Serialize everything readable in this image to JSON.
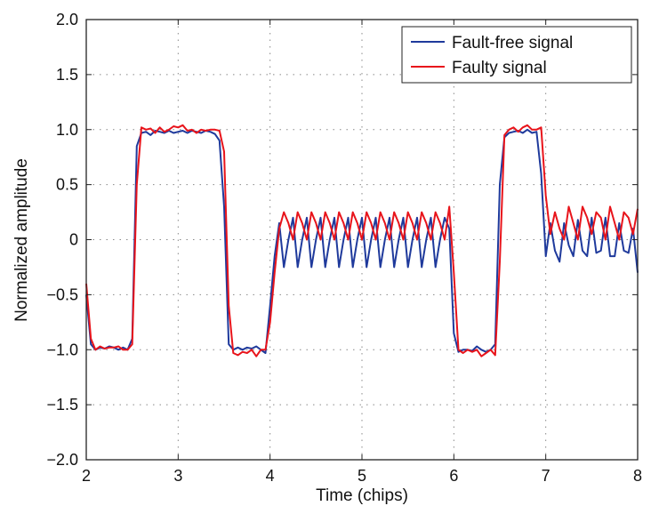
{
  "chart_data": {
    "type": "line",
    "title": "",
    "xlabel": "Time (chips)",
    "ylabel": "Normalized amplitude",
    "xlim": [
      2,
      8
    ],
    "ylim": [
      -2,
      2
    ],
    "xticks": [
      2,
      3,
      4,
      5,
      6,
      7,
      8
    ],
    "xtick_labels": [
      "2",
      "3",
      "4",
      "5",
      "6",
      "7",
      "8"
    ],
    "yticks": [
      -2,
      -1.5,
      -1,
      -0.5,
      0,
      0.5,
      1,
      1.5,
      2
    ],
    "ytick_labels": [
      "−2.0",
      "−1.5",
      "−1.0",
      "−0.5",
      "0",
      "0.5",
      "1.0",
      "1.5",
      "2.0"
    ],
    "grid": true,
    "legend_position": "top-right",
    "x_start": 2,
    "x_step": 0.05,
    "series": [
      {
        "name": "Fault-free signal",
        "color": "#1f3a9c",
        "values": [
          -0.5,
          -0.95,
          -1.0,
          -0.98,
          -0.99,
          -0.97,
          -0.98,
          -1.0,
          -0.98,
          -1.0,
          -0.9,
          0.85,
          0.97,
          0.98,
          0.95,
          0.99,
          0.98,
          0.97,
          0.99,
          0.97,
          0.98,
          0.99,
          0.97,
          0.99,
          0.98,
          0.97,
          0.99,
          0.98,
          0.96,
          0.9,
          0.3,
          -0.95,
          -1.0,
          -0.98,
          -1.0,
          -0.98,
          -0.99,
          -0.97,
          -1.0,
          -1.03,
          -0.6,
          -0.15,
          0.15,
          -0.25,
          0.0,
          0.2,
          -0.25,
          0.0,
          0.2,
          -0.25,
          0.0,
          0.2,
          -0.25,
          0.0,
          0.2,
          -0.25,
          0.0,
          0.2,
          -0.25,
          0.0,
          0.2,
          -0.25,
          0.0,
          0.2,
          -0.25,
          0.0,
          0.2,
          -0.25,
          0.0,
          0.2,
          -0.25,
          0.0,
          0.2,
          -0.25,
          0.0,
          0.2,
          -0.25,
          0.0,
          0.2,
          0.1,
          -0.85,
          -1.02,
          -1.0,
          -1.0,
          -1.01,
          -0.97,
          -1.0,
          -1.02,
          -1.0,
          -0.95,
          0.5,
          0.93,
          0.97,
          0.98,
          0.99,
          0.97,
          1.0,
          0.97,
          0.98,
          0.6,
          -0.15,
          0.15,
          -0.1,
          -0.2,
          0.15,
          -0.05,
          -0.15,
          0.18,
          -0.1,
          -0.15,
          0.2,
          -0.12,
          -0.1,
          0.2,
          -0.15,
          -0.15,
          0.15,
          -0.1,
          -0.12,
          0.1,
          -0.3
        ]
      },
      {
        "name": "Faulty signal",
        "color": "#e8141b",
        "values": [
          -0.4,
          -0.9,
          -1.0,
          -0.97,
          -0.99,
          -0.98,
          -0.98,
          -0.97,
          -1.0,
          -1.0,
          -0.95,
          0.5,
          1.02,
          1.0,
          1.01,
          0.97,
          1.02,
          0.98,
          1.0,
          1.03,
          1.02,
          1.04,
          0.99,
          1.0,
          0.97,
          1.0,
          0.99,
          1.0,
          1.0,
          0.99,
          0.8,
          -0.6,
          -1.03,
          -1.05,
          -1.02,
          -1.03,
          -1.0,
          -1.06,
          -1.0,
          -1.0,
          -0.75,
          -0.3,
          0.1,
          0.25,
          0.15,
          0.0,
          0.25,
          0.15,
          0.0,
          0.25,
          0.15,
          0.0,
          0.25,
          0.15,
          0.0,
          0.25,
          0.15,
          0.0,
          0.25,
          0.15,
          0.0,
          0.25,
          0.15,
          0.0,
          0.25,
          0.15,
          0.0,
          0.25,
          0.15,
          0.0,
          0.25,
          0.15,
          0.0,
          0.25,
          0.15,
          0.0,
          0.25,
          0.15,
          0.0,
          0.3,
          -0.3,
          -1.0,
          -1.03,
          -1.0,
          -1.02,
          -1.0,
          -1.06,
          -1.03,
          -1.0,
          -1.05,
          -0.2,
          0.95,
          1.0,
          1.02,
          0.98,
          1.02,
          1.04,
          1.0,
          1.0,
          1.02,
          0.4,
          0.05,
          0.25,
          0.1,
          0.0,
          0.3,
          0.15,
          0.0,
          0.3,
          0.2,
          0.05,
          0.25,
          0.2,
          0.0,
          0.3,
          0.15,
          0.0,
          0.25,
          0.2,
          0.05,
          0.28
        ]
      }
    ]
  }
}
